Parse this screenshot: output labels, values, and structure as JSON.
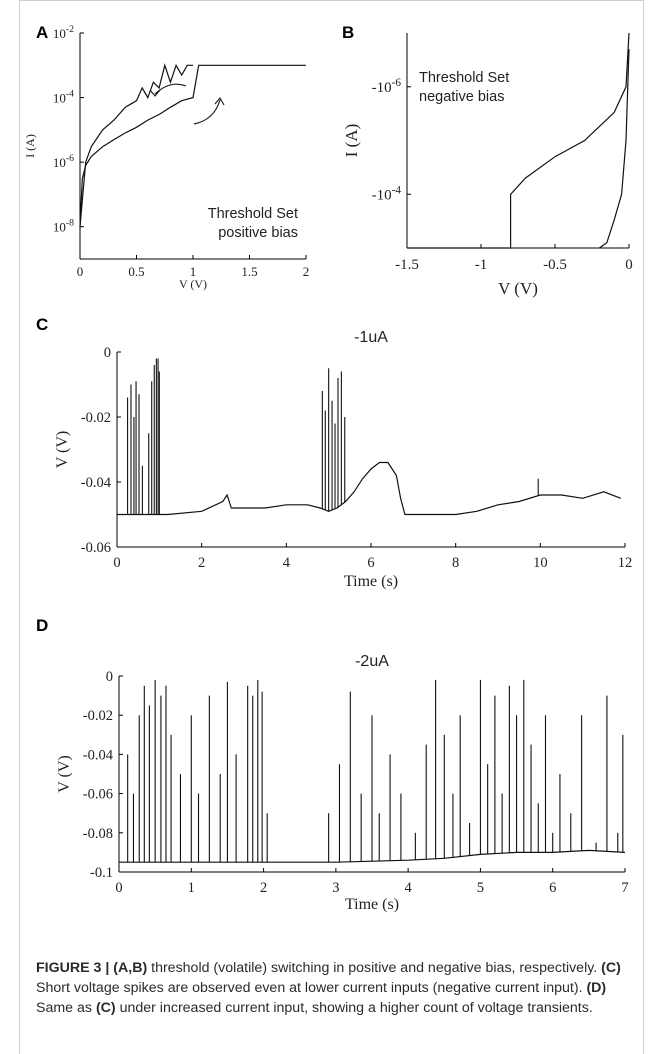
{
  "caption": {
    "figure_label": "FIGURE 3 | ",
    "parts": [
      {
        "bold": true,
        "text": "(A,B)"
      },
      {
        "bold": false,
        "text": " threshold (volatile) switching in positive and negative bias, respectively. "
      },
      {
        "bold": true,
        "text": "(C)"
      },
      {
        "bold": false,
        "text": " Short voltage spikes are observed even at lower current inputs (negative current input). "
      },
      {
        "bold": true,
        "text": "(D)"
      },
      {
        "bold": false,
        "text": " Same as "
      },
      {
        "bold": true,
        "text": "(C)"
      },
      {
        "bold": false,
        "text": " under increased current input, showing a higher count of voltage transients."
      }
    ]
  },
  "chart_data": [
    {
      "panel": "A",
      "type": "line",
      "title": "",
      "xlabel": "V (V)",
      "ylabel": "I (A)",
      "xlim": [
        0,
        2
      ],
      "ylim": [
        1e-09,
        0.01
      ],
      "yscale": "log",
      "x_ticks": [
        "0",
        "0.5",
        "1",
        "1.5",
        "2"
      ],
      "y_ticks": [
        "10-8",
        "10-6",
        "10-4",
        "10-2"
      ],
      "annotation": [
        "Threshold Set",
        "positive bias"
      ],
      "grid": false,
      "series": [
        {
          "x": [
            0.0,
            0.02,
            0.05,
            0.1,
            0.2,
            0.3,
            0.4,
            0.5,
            0.6,
            0.7,
            0.8,
            0.9,
            1.0,
            1.05,
            1.1,
            1.2,
            1.5,
            2.0
          ],
          "y": [
            1e-08,
            3e-07,
            8e-07,
            1.5e-06,
            3e-06,
            5e-06,
            8e-06,
            1.2e-05,
            2e-05,
            3e-05,
            5e-05,
            8e-05,
            0.0001,
            0.001,
            0.001,
            0.001,
            0.001,
            0.001
          ]
        },
        {
          "x": [
            0.0,
            0.05,
            0.1,
            0.2,
            0.3,
            0.4,
            0.5,
            0.55,
            0.6,
            0.65,
            0.7,
            0.75,
            0.8,
            0.85,
            0.9,
            0.95,
            1.0
          ],
          "y": [
            1e-08,
            1e-06,
            3e-06,
            1e-05,
            2e-05,
            5e-05,
            8e-05,
            0.0002,
            0.0001,
            0.0003,
            0.0002,
            0.001,
            0.0003,
            0.001,
            0.0005,
            0.001,
            0.001
          ]
        }
      ]
    },
    {
      "panel": "B",
      "type": "line",
      "title": "",
      "xlabel": "V (V)",
      "ylabel": "I (A)",
      "xlim": [
        -1.5,
        0
      ],
      "ylim": [
        -0.001,
        -1e-07
      ],
      "yscale": "log",
      "x_ticks": [
        "-1.5",
        "-1",
        "-0.5",
        "0"
      ],
      "y_ticks": [
        "-10-6",
        "-10-4"
      ],
      "annotation": [
        "Threshold Set",
        "negative bias"
      ],
      "grid": false,
      "series": [
        {
          "x": [
            -1.5,
            -1.0,
            -0.85,
            -0.8,
            -0.8,
            -0.7,
            -0.5,
            -0.3,
            -0.1,
            -0.02,
            0.0
          ],
          "y": [
            -0.001,
            -0.001,
            -0.001,
            -0.001,
            -0.0001,
            -5e-05,
            -2e-05,
            -1e-05,
            -3e-06,
            -1e-06,
            -1e-07
          ]
        },
        {
          "x": [
            -0.2,
            -0.15,
            -0.1,
            -0.05,
            -0.02,
            0.0
          ],
          "y": [
            -0.001,
            -0.0008,
            -0.0003,
            -0.0001,
            -1e-05,
            -2e-07
          ]
        }
      ]
    },
    {
      "panel": "C",
      "type": "line",
      "title": "-1uA",
      "xlabel": "Time (s)",
      "ylabel": "V (V)",
      "xlim": [
        0,
        12
      ],
      "ylim": [
        -0.06,
        0
      ],
      "x_ticks": [
        "0",
        "2",
        "4",
        "6",
        "8",
        "10",
        "12"
      ],
      "y_ticks": [
        "0",
        "-0.02",
        "-0.04",
        "-0.06"
      ],
      "baseline": -0.05,
      "grid": false,
      "series": [
        {
          "x": [
            0,
            0.2,
            0.4,
            0.6,
            0.8,
            1.0,
            1.2,
            2.0,
            2.5,
            2.6,
            2.7,
            3.5,
            4.0,
            4.5,
            4.8,
            5.0,
            5.2,
            5.4,
            5.6,
            5.8,
            6.0,
            6.2,
            6.4,
            6.6,
            6.7,
            6.8,
            7.5,
            8.0,
            8.5,
            9.0,
            9.5,
            10.0,
            10.5,
            11.0,
            11.5,
            11.9
          ],
          "y": [
            -0.05,
            -0.05,
            -0.05,
            -0.05,
            -0.05,
            -0.05,
            -0.05,
            -0.049,
            -0.046,
            -0.044,
            -0.048,
            -0.048,
            -0.047,
            -0.047,
            -0.048,
            -0.049,
            -0.048,
            -0.046,
            -0.043,
            -0.039,
            -0.036,
            -0.034,
            -0.034,
            -0.038,
            -0.045,
            -0.05,
            -0.05,
            -0.05,
            -0.049,
            -0.047,
            -0.046,
            -0.044,
            -0.044,
            -0.045,
            -0.043,
            -0.045
          ]
        }
      ],
      "spikes": [
        {
          "x": 0.25,
          "y": -0.014
        },
        {
          "x": 0.33,
          "y": -0.01
        },
        {
          "x": 0.4,
          "y": -0.02
        },
        {
          "x": 0.45,
          "y": -0.009
        },
        {
          "x": 0.52,
          "y": -0.013
        },
        {
          "x": 0.6,
          "y": -0.035
        },
        {
          "x": 0.75,
          "y": -0.025
        },
        {
          "x": 0.82,
          "y": -0.009
        },
        {
          "x": 0.88,
          "y": -0.004
        },
        {
          "x": 0.93,
          "y": -0.002
        },
        {
          "x": 0.97,
          "y": -0.002
        },
        {
          "x": 1.0,
          "y": -0.006
        },
        {
          "x": 4.85,
          "y": -0.012
        },
        {
          "x": 4.92,
          "y": -0.018
        },
        {
          "x": 5.0,
          "y": -0.005
        },
        {
          "x": 5.08,
          "y": -0.015
        },
        {
          "x": 5.15,
          "y": -0.022
        },
        {
          "x": 5.22,
          "y": -0.008
        },
        {
          "x": 5.3,
          "y": -0.006
        },
        {
          "x": 5.38,
          "y": -0.02
        },
        {
          "x": 9.95,
          "y": -0.039
        }
      ]
    },
    {
      "panel": "D",
      "type": "line",
      "title": "-2uA",
      "xlabel": "Time (s)",
      "ylabel": "V (V)",
      "xlim": [
        0,
        7
      ],
      "ylim": [
        -0.1,
        0
      ],
      "x_ticks": [
        "0",
        "1",
        "2",
        "3",
        "4",
        "5",
        "6",
        "7"
      ],
      "y_ticks": [
        "0",
        "-0.02",
        "-0.04",
        "-0.06",
        "-0.08",
        "-0.1"
      ],
      "baseline": -0.095,
      "grid": false,
      "series": [
        {
          "x": [
            0,
            1,
            2,
            2.5,
            3,
            4,
            4.5,
            5,
            5.5,
            6,
            6.5,
            7
          ],
          "y": [
            -0.095,
            -0.095,
            -0.095,
            -0.095,
            -0.095,
            -0.094,
            -0.093,
            -0.091,
            -0.09,
            -0.09,
            -0.089,
            -0.09
          ]
        }
      ],
      "spikes": [
        {
          "x": 0.12,
          "y": -0.04
        },
        {
          "x": 0.2,
          "y": -0.06
        },
        {
          "x": 0.28,
          "y": -0.02
        },
        {
          "x": 0.35,
          "y": -0.005
        },
        {
          "x": 0.42,
          "y": -0.015
        },
        {
          "x": 0.5,
          "y": -0.002
        },
        {
          "x": 0.58,
          "y": -0.01
        },
        {
          "x": 0.65,
          "y": -0.005
        },
        {
          "x": 0.72,
          "y": -0.03
        },
        {
          "x": 0.85,
          "y": -0.05
        },
        {
          "x": 1.0,
          "y": -0.02
        },
        {
          "x": 1.1,
          "y": -0.06
        },
        {
          "x": 1.25,
          "y": -0.01
        },
        {
          "x": 1.4,
          "y": -0.05
        },
        {
          "x": 1.5,
          "y": -0.003
        },
        {
          "x": 1.62,
          "y": -0.04
        },
        {
          "x": 1.78,
          "y": -0.005
        },
        {
          "x": 1.85,
          "y": -0.01
        },
        {
          "x": 1.92,
          "y": -0.002
        },
        {
          "x": 1.98,
          "y": -0.008
        },
        {
          "x": 2.05,
          "y": -0.07
        },
        {
          "x": 2.9,
          "y": -0.07
        },
        {
          "x": 3.05,
          "y": -0.045
        },
        {
          "x": 3.2,
          "y": -0.008
        },
        {
          "x": 3.35,
          "y": -0.06
        },
        {
          "x": 3.5,
          "y": -0.02
        },
        {
          "x": 3.6,
          "y": -0.07
        },
        {
          "x": 3.75,
          "y": -0.04
        },
        {
          "x": 3.9,
          "y": -0.06
        },
        {
          "x": 4.1,
          "y": -0.08
        },
        {
          "x": 4.25,
          "y": -0.035
        },
        {
          "x": 4.38,
          "y": -0.002
        },
        {
          "x": 4.5,
          "y": -0.03
        },
        {
          "x": 4.62,
          "y": -0.06
        },
        {
          "x": 4.72,
          "y": -0.02
        },
        {
          "x": 4.85,
          "y": -0.075
        },
        {
          "x": 5.0,
          "y": -0.002
        },
        {
          "x": 5.1,
          "y": -0.045
        },
        {
          "x": 5.2,
          "y": -0.01
        },
        {
          "x": 5.3,
          "y": -0.06
        },
        {
          "x": 5.4,
          "y": -0.005
        },
        {
          "x": 5.5,
          "y": -0.02
        },
        {
          "x": 5.6,
          "y": -0.002
        },
        {
          "x": 5.7,
          "y": -0.035
        },
        {
          "x": 5.8,
          "y": -0.065
        },
        {
          "x": 5.9,
          "y": -0.02
        },
        {
          "x": 6.0,
          "y": -0.08
        },
        {
          "x": 6.1,
          "y": -0.05
        },
        {
          "x": 6.25,
          "y": -0.07
        },
        {
          "x": 6.4,
          "y": -0.02
        },
        {
          "x": 6.6,
          "y": -0.085
        },
        {
          "x": 6.75,
          "y": -0.01
        },
        {
          "x": 6.9,
          "y": -0.08
        },
        {
          "x": 6.97,
          "y": -0.03
        }
      ]
    }
  ],
  "panel_letters": [
    "A",
    "B",
    "C",
    "D"
  ]
}
